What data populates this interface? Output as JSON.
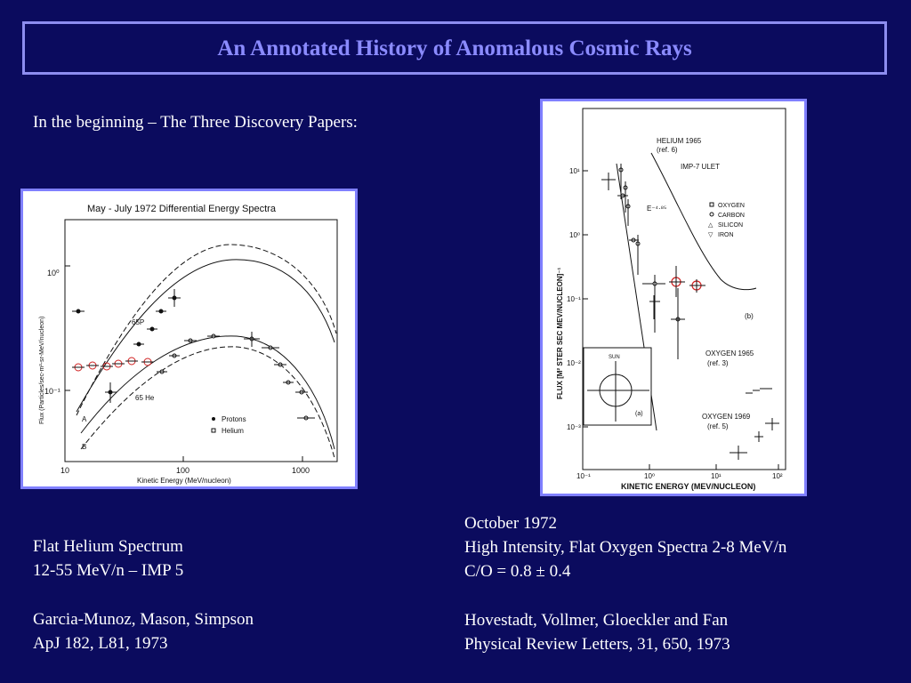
{
  "title": "An Annotated History of Anomalous Cosmic Rays",
  "intro": "In the beginning – The Three Discovery Papers:",
  "left_caption": [
    "Flat Helium Spectrum",
    "12-55 MeV/n – IMP 5",
    "",
    "Garcia-Munoz, Mason, Simpson",
    "ApJ 182, L81, 1973"
  ],
  "right_caption": [
    "October 1972",
    "High Intensity, Flat Oxygen Spectra 2-8 MeV/n",
    "C/O = 0.8 ± 0.4",
    "",
    "Hovestadt, Vollmer, Gloeckler and Fan",
    "Physical Review Letters, 31, 650, 1973"
  ],
  "colors": {
    "background": "#0b0b5e",
    "title": "#8b8bff",
    "frame": "#8080ff",
    "highlight": "#d02020"
  },
  "fig1": {
    "title": "May - July 1972  Differential Energy Spectra",
    "ylabel": "Flux  (Particles/sec-m²-sr-MeV/nucleon)",
    "xlabel": "Kinetic Energy  (MeV/nucleon)",
    "xticks": [
      "10",
      "100",
      "1000"
    ],
    "yticks": [
      "10⁰",
      "10⁻¹"
    ],
    "labels": {
      "p65": "65P",
      "he65": "65 He",
      "a": "A",
      "b": "B"
    },
    "legend": {
      "protons": "Protons",
      "helium": "Helium"
    }
  },
  "fig2": {
    "ylabel": "FLUX  [M² STER SEC MEV/NUCLEON]⁻¹",
    "xlabel": "KINETIC  ENERGY  (MEV/NUCLEON)",
    "xticks": [
      "10⁻¹",
      "10⁰",
      "10¹",
      "10²"
    ],
    "yticks": [
      "10¹",
      "10⁰",
      "10⁻¹",
      "10⁻²",
      "10⁻³"
    ],
    "he1965": [
      "HELIUM 1965",
      "(ref. 6)"
    ],
    "imp7": "IMP-7   ULET",
    "legend": [
      "OXYGEN",
      "CARBON",
      "SILICON",
      "IRON"
    ],
    "eslope": "E⁻⁴·⁸⁵",
    "panel_b": "(b)",
    "panel_a": "(a)",
    "sun": "SUN",
    "ox1965": [
      "OXYGEN 1965",
      "(ref. 3)"
    ],
    "ox1969": [
      "OXYGEN 1969",
      "(ref. 5)"
    ]
  }
}
